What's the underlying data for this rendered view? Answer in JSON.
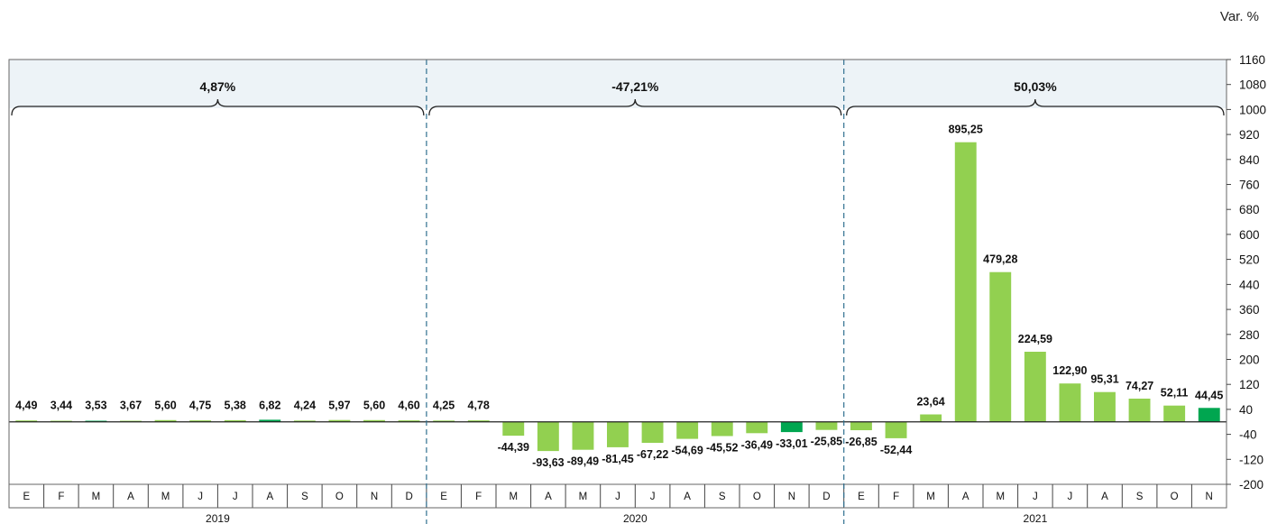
{
  "chart_data": {
    "type": "bar",
    "unit_label": "Var. %",
    "categories": [
      "E",
      "F",
      "M",
      "A",
      "M",
      "J",
      "J",
      "A",
      "S",
      "O",
      "N",
      "D",
      "E",
      "F",
      "M",
      "A",
      "M",
      "J",
      "J",
      "A",
      "S",
      "O",
      "N",
      "D",
      "E",
      "F",
      "M",
      "A",
      "M",
      "J",
      "J",
      "A",
      "S",
      "O",
      "N"
    ],
    "values": [
      4.49,
      3.44,
      3.53,
      3.67,
      5.6,
      4.75,
      5.38,
      6.82,
      4.24,
      5.97,
      5.6,
      4.6,
      4.25,
      4.78,
      -44.39,
      -93.63,
      -89.49,
      -81.45,
      -67.22,
      -54.69,
      -45.52,
      -36.49,
      -33.01,
      -25.85,
      -26.85,
      -52.44,
      23.64,
      895.25,
      479.28,
      224.59,
      122.9,
      95.31,
      74.27,
      52.11,
      44.45
    ],
    "value_labels": [
      "4,49",
      "3,44",
      "3,53",
      "3,67",
      "5,60",
      "4,75",
      "5,38",
      "6,82",
      "4,24",
      "5,97",
      "5,60",
      "4,60",
      "4,25",
      "4,78",
      "-44,39",
      "-93,63",
      "-89,49",
      "-81,45",
      "-67,22",
      "-54,69",
      "-45,52",
      "-36,49",
      "-33,01",
      "-25,85",
      "-26,85",
      "-52,44",
      "23,64",
      "895,25",
      "479,28",
      "224,59",
      "122,90",
      "95,31",
      "74,27",
      "52,11",
      "44,45"
    ],
    "highlighted": [
      2,
      7,
      22,
      34
    ],
    "ylim": [
      -200,
      1160
    ],
    "yticks": [
      1160,
      1080,
      1000,
      920,
      840,
      760,
      680,
      600,
      520,
      440,
      360,
      280,
      200,
      120,
      40,
      -40,
      -120,
      -200
    ],
    "grid": false,
    "years": [
      {
        "label": "2019",
        "summary": "4,87%",
        "count": 12
      },
      {
        "label": "2020",
        "summary": "-47,21%",
        "count": 12
      },
      {
        "label": "2021",
        "summary": "50,03%",
        "count": 11
      }
    ],
    "colors": {
      "bar": "#92d050",
      "highlight": "#00a650",
      "header_fill": "#edf3f7",
      "frame": "#666666",
      "divider": "#2f6f8f"
    }
  }
}
